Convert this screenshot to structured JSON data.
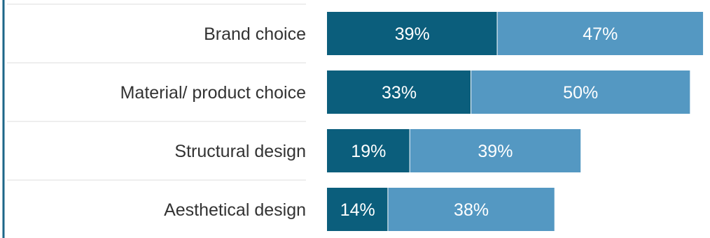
{
  "chart_data": {
    "type": "bar",
    "orientation": "horizontal",
    "stacked": true,
    "categories": [
      "Brand choice",
      "Material/ product choice",
      "Structural design",
      "Aesthetical design"
    ],
    "series": [
      {
        "values": [
          39,
          33,
          19,
          14
        ],
        "labels": [
          "39%",
          "33%",
          "19%",
          "14%"
        ],
        "color": "#0b5e7c"
      },
      {
        "values": [
          47,
          50,
          39,
          38
        ],
        "labels": [
          "47%",
          "50%",
          "39%",
          "38%"
        ],
        "color": "#5498c2"
      }
    ],
    "xlim": [
      0,
      85
    ],
    "grid": true,
    "legend": "none"
  }
}
